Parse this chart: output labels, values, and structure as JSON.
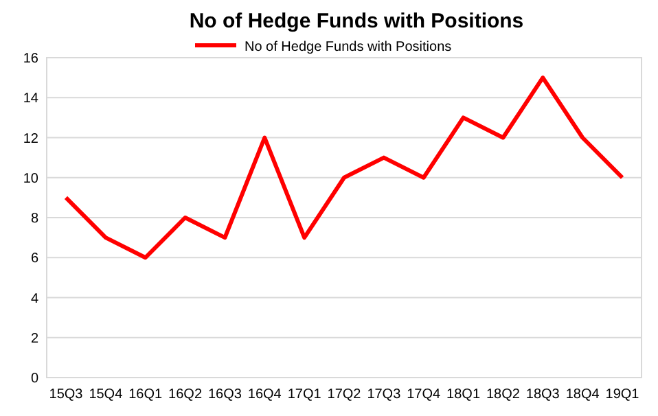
{
  "chart_data": {
    "type": "line",
    "title": "No of Hedge Funds with Positions",
    "categories": [
      "15Q3",
      "15Q4",
      "16Q1",
      "16Q2",
      "16Q3",
      "16Q4",
      "17Q1",
      "17Q2",
      "17Q3",
      "17Q4",
      "18Q1",
      "18Q2",
      "18Q3",
      "18Q4",
      "19Q1"
    ],
    "series": [
      {
        "name": "No of Hedge Funds with Positions",
        "color": "#ff0000",
        "values": [
          9,
          7,
          6,
          8,
          7,
          12,
          7,
          10,
          11,
          10,
          13,
          12,
          15,
          12,
          10
        ]
      }
    ],
    "ylim": [
      0,
      16
    ],
    "yticks": [
      0,
      2,
      4,
      6,
      8,
      10,
      12,
      14,
      16
    ],
    "grid": "y",
    "legend": "top",
    "marker": "none",
    "line_style": "solid"
  }
}
